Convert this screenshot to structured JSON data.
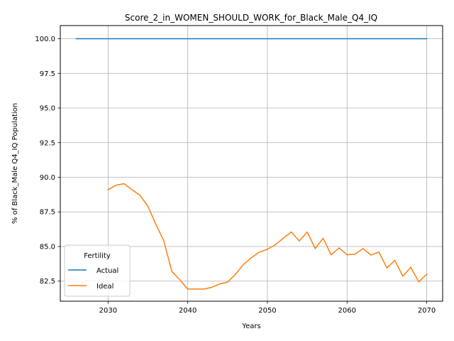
{
  "chart_data": {
    "type": "line",
    "title": "Score_2_in_WOMEN_SHOULD_WORK_for_Black_Male_Q4_IQ",
    "xlabel": "Years",
    "ylabel": "% of Black_Male Q4_IQ Population",
    "xlim": [
      2024,
      2072
    ],
    "ylim": [
      81.05,
      100.95
    ],
    "x_ticks": [
      2030,
      2040,
      2050,
      2060,
      2070
    ],
    "x_tick_labels": [
      "2030",
      "2040",
      "2050",
      "2060",
      "2070"
    ],
    "y_ticks": [
      82.5,
      85.0,
      87.5,
      90.0,
      92.5,
      95.0,
      97.5,
      100.0
    ],
    "y_tick_labels": [
      "82.5",
      "85.0",
      "87.5",
      "90.0",
      "92.5",
      "95.0",
      "97.5",
      "100.0"
    ],
    "grid": true,
    "legend": {
      "title": "Fertility",
      "placement": "lower-left",
      "entries": [
        "Actual",
        "Ideal"
      ]
    },
    "series": [
      {
        "name": "Actual",
        "color": "#1f77b4",
        "x": [
          2026,
          2070
        ],
        "y": [
          100.0,
          100.0
        ]
      },
      {
        "name": "Ideal",
        "color": "#ff7f0e",
        "x": [
          2030,
          2031,
          2032,
          2033,
          2034,
          2035,
          2036,
          2037,
          2038,
          2039,
          2040,
          2041,
          2042,
          2043,
          2044,
          2045,
          2046,
          2047,
          2048,
          2049,
          2050,
          2051,
          2052,
          2053,
          2054,
          2055,
          2056,
          2057,
          2058,
          2059,
          2060,
          2061,
          2062,
          2063,
          2064,
          2065,
          2066,
          2067,
          2068,
          2069,
          2070
        ],
        "y": [
          89.1,
          89.43,
          89.53,
          89.1,
          88.7,
          87.9,
          86.6,
          85.4,
          83.2,
          82.6,
          81.93,
          81.93,
          81.93,
          82.05,
          82.3,
          82.43,
          83.0,
          83.7,
          84.2,
          84.6,
          84.8,
          85.13,
          85.6,
          86.05,
          85.4,
          86.05,
          84.85,
          85.6,
          84.4,
          84.9,
          84.4,
          84.45,
          84.85,
          84.38,
          84.6,
          83.45,
          84.0,
          82.85,
          83.5,
          82.45,
          83.0
        ]
      }
    ]
  }
}
